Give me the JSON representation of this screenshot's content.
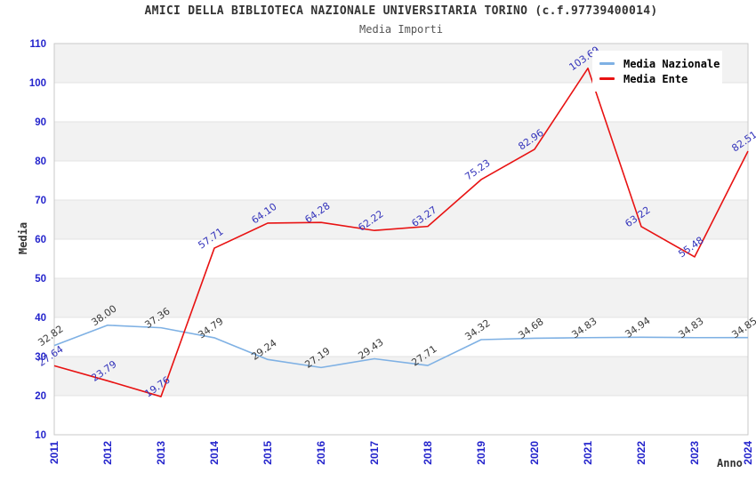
{
  "header": {
    "title": "AMICI DELLA BIBLIOTECA NAZIONALE UNIVERSITARIA TORINO (c.f.97739400014)",
    "subtitle": "Media Importi"
  },
  "chart_data": {
    "type": "line",
    "title": "AMICI DELLA BIBLIOTECA NAZIONALE UNIVERSITARIA TORINO (c.f.97739400014)",
    "subtitle": "Media Importi",
    "xlabel": "Anno",
    "ylabel": "Media",
    "categories": [
      "2011",
      "2012",
      "2013",
      "2014",
      "2015",
      "2016",
      "2017",
      "2018",
      "2019",
      "2020",
      "2021",
      "2022",
      "2023",
      "2024"
    ],
    "y_ticks": [
      110,
      100,
      90,
      80,
      70,
      60,
      50,
      40,
      30,
      20,
      10
    ],
    "ylim": [
      10,
      110
    ],
    "grid": "horizontal gridlines with alternating gray/white bands",
    "legend_position": "top-right",
    "series": [
      {
        "name": "Media Nazionale",
        "color": "#7fb1e4",
        "label_color": "#3a3a3a",
        "values": [
          32.82,
          38.0,
          37.36,
          34.79,
          29.24,
          27.19,
          29.43,
          27.71,
          34.32,
          34.68,
          34.83,
          34.94,
          34.83,
          34.85
        ]
      },
      {
        "name": "Media Ente",
        "color": "#e81212",
        "label_color": "#3333bb",
        "values": [
          27.64,
          23.79,
          19.76,
          57.71,
          64.1,
          64.28,
          62.22,
          63.27,
          75.23,
          82.96,
          103.69,
          63.22,
          55.48,
          82.51
        ]
      }
    ],
    "style": {
      "band_fill": "#f2f2f2",
      "grid_color": "#e3e3e3",
      "border_color": "#c9c9c9",
      "tick_label_color": "#2424cc"
    }
  }
}
